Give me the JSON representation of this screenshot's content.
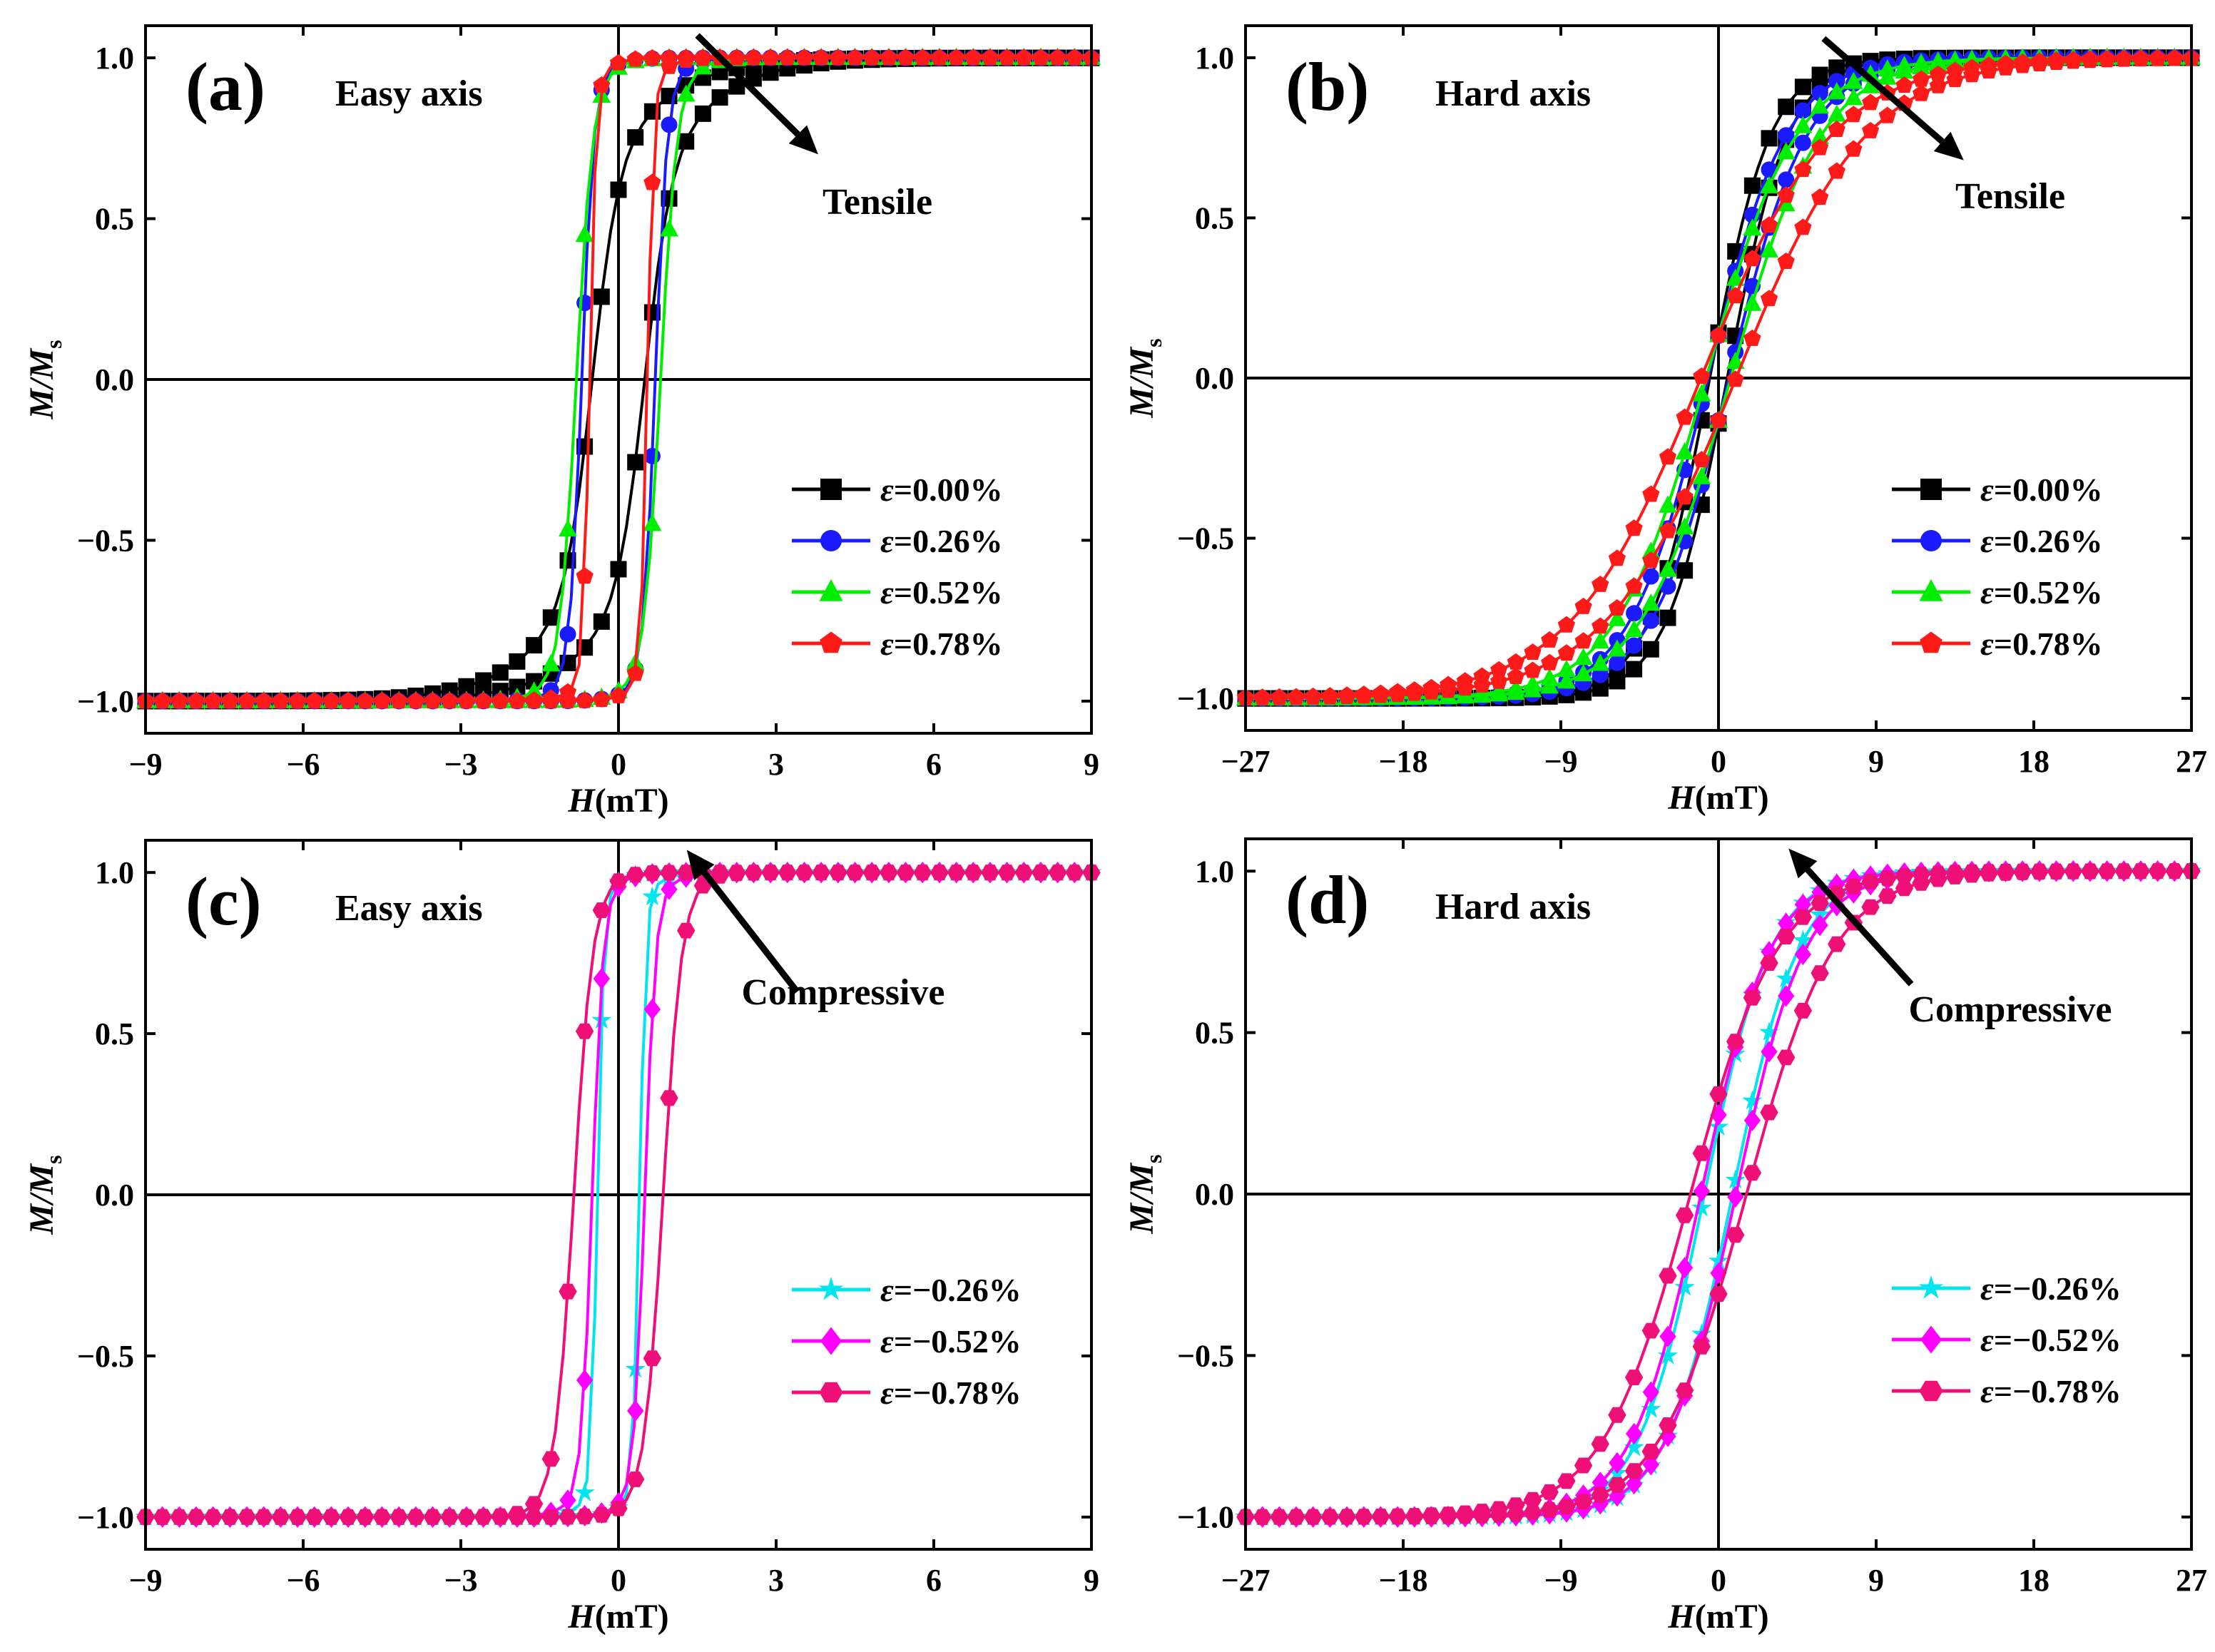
{
  "chart_data": [
    {
      "type": "line",
      "panel_label": "(a)",
      "axis_note": "Easy axis",
      "arrow_label": "Tensile",
      "xlabel_var": "H",
      "xlabel_unit": "(mT)",
      "ylabel_var": "M/M",
      "ylabel_sub": "s",
      "xlim": [
        -9,
        9
      ],
      "ylim": [
        -1.1,
        1.1
      ],
      "xticks": [
        -9,
        -6,
        -3,
        0,
        3,
        6,
        9
      ],
      "xtick_labels": [
        "−9",
        "−6",
        "−3",
        "0",
        "3",
        "6",
        "9"
      ],
      "yticks": [
        -1.0,
        -0.5,
        0.0,
        0.5,
        1.0
      ],
      "ytick_labels": [
        "−1.0",
        "−0.5",
        "0.0",
        "0.5",
        "1.0"
      ],
      "arrow": {
        "from": [
          1.5,
          1.07
        ],
        "to": [
          3.8,
          0.7
        ]
      },
      "series": [
        {
          "name": "ε=0.00%",
          "color": "#000000",
          "marker": "square",
          "Hc": 0.5,
          "w": 0.5,
          "a": 1.8,
          "b": 0.65
        },
        {
          "name": "ε=0.26%",
          "color": "#1a1aff",
          "marker": "circle",
          "Hc": 0.7,
          "w": 0.22,
          "a": 0.6,
          "b": 0.9
        },
        {
          "name": "ε=0.52%",
          "color": "#00ee00",
          "marker": "triangle",
          "Hc": 0.8,
          "w": 0.3,
          "a": 0.7,
          "b": 0.88
        },
        {
          "name": "ε=0.78%",
          "color": "#ff1a1a",
          "marker": "pentagon",
          "Hc": 0.55,
          "w": 0.12,
          "a": 0.5,
          "b": 0.92
        }
      ]
    },
    {
      "type": "line",
      "panel_label": "(b)",
      "axis_note": "Hard axis",
      "arrow_label": "Tensile",
      "xlabel_var": "H",
      "xlabel_unit": "(mT)",
      "ylabel_var": "M/M",
      "ylabel_sub": "s",
      "xlim": [
        -27,
        27
      ],
      "ylim": [
        -1.1,
        1.1
      ],
      "xticks": [
        -27,
        -18,
        -9,
        0,
        9,
        18,
        27
      ],
      "xtick_labels": [
        "−27",
        "−18",
        "−9",
        "0",
        "9",
        "18",
        "27"
      ],
      "yticks": [
        -1.0,
        -0.5,
        0.0,
        0.5,
        1.0
      ],
      "ytick_labels": [
        "−1.0",
        "−0.5",
        "0.0",
        "0.5",
        "1.0"
      ],
      "arrow": {
        "from": [
          6,
          1.06
        ],
        "to": [
          14,
          0.68
        ]
      },
      "series": [
        {
          "name": "ε=0.00%",
          "color": "#000000",
          "marker": "square",
          "Hc": 0.5,
          "w": 0.4,
          "a": 3.5,
          "b": 0.0
        },
        {
          "name": "ε=0.26%",
          "color": "#1a1aff",
          "marker": "circle",
          "Hc": 0.6,
          "w": 0.5,
          "a": 4.5,
          "b": 0.0
        },
        {
          "name": "ε=0.52%",
          "color": "#00ee00",
          "marker": "triangle",
          "Hc": 0.7,
          "w": 0.5,
          "a": 5.2,
          "b": 0.0
        },
        {
          "name": "ε=0.78%",
          "color": "#ff1a1a",
          "marker": "pentagon",
          "Hc": 1.0,
          "w": 0.5,
          "a": 7.5,
          "b": 0.0
        }
      ]
    },
    {
      "type": "line",
      "panel_label": "(c)",
      "axis_note": "Easy axis",
      "arrow_label": "Compressive",
      "xlabel_var": "H",
      "xlabel_unit": "(mT)",
      "ylabel_var": "M/M",
      "ylabel_sub": "s",
      "xlim": [
        -9,
        9
      ],
      "ylim": [
        -1.1,
        1.1
      ],
      "xticks": [
        -9,
        -6,
        -3,
        0,
        3,
        6,
        9
      ],
      "xtick_labels": [
        "−9",
        "−6",
        "−3",
        "0",
        "3",
        "6",
        "9"
      ],
      "yticks": [
        -1.0,
        -0.5,
        0.0,
        0.5,
        1.0
      ],
      "ytick_labels": [
        "−1.0",
        "−0.5",
        "0.0",
        "0.5",
        "1.0"
      ],
      "arrow": {
        "from": [
          3.4,
          0.63
        ],
        "to": [
          1.3,
          1.07
        ]
      },
      "series": [
        {
          "name": "ε=−0.26%",
          "color": "#00e5ee",
          "marker": "star",
          "Hc": 0.4,
          "w": 0.12,
          "a": 0.5,
          "b": 0.92
        },
        {
          "name": "ε=−0.52%",
          "color": "#ff00ff",
          "marker": "diamond",
          "Hc": 0.5,
          "w": 0.2,
          "a": 0.6,
          "b": 0.9
        },
        {
          "name": "ε=−0.78%",
          "color": "#ee1077",
          "marker": "hexagon",
          "Hc": 0.85,
          "w": 0.35,
          "a": 0.6,
          "b": 0.88
        }
      ]
    },
    {
      "type": "line",
      "panel_label": "(d)",
      "axis_note": "Hard axis",
      "arrow_label": "Compressive",
      "xlabel_var": "H",
      "xlabel_unit": "(mT)",
      "ylabel_var": "M/M",
      "ylabel_sub": "s",
      "xlim": [
        -27,
        27
      ],
      "ylim": [
        -1.1,
        1.1
      ],
      "xticks": [
        -27,
        -18,
        -9,
        0,
        9,
        18,
        27
      ],
      "xtick_labels": [
        "−27",
        "−18",
        "−9",
        "0",
        "9",
        "18",
        "27"
      ],
      "yticks": [
        -1.0,
        -0.5,
        0.0,
        0.5,
        1.0
      ],
      "ytick_labels": [
        "−1.0",
        "−0.5",
        "0.0",
        "0.5",
        "1.0"
      ],
      "arrow": {
        "from": [
          11,
          0.65
        ],
        "to": [
          4,
          1.07
        ]
      },
      "series": [
        {
          "name": "ε=−0.26%",
          "color": "#00e5ee",
          "marker": "star",
          "Hc": 0.8,
          "w": 0.5,
          "a": 3.8,
          "b": 0.0
        },
        {
          "name": "ε=−0.52%",
          "color": "#ff00ff",
          "marker": "diamond",
          "Hc": 1.0,
          "w": 0.5,
          "a": 4.0,
          "b": 0.0
        },
        {
          "name": "ε=−0.78%",
          "color": "#ee1077",
          "marker": "hexagon",
          "Hc": 1.6,
          "w": 0.5,
          "a": 5.0,
          "b": 0.0
        }
      ]
    }
  ]
}
